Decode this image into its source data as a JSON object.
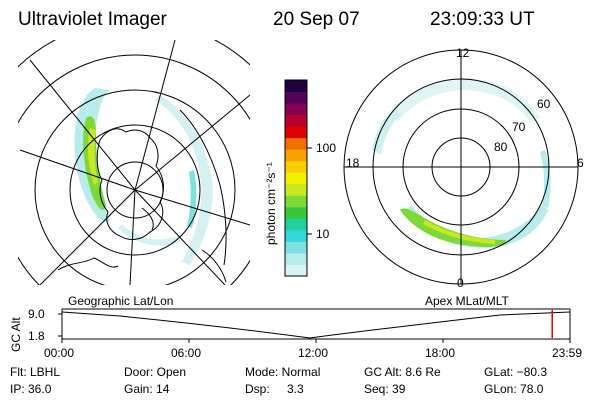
{
  "header": {
    "instrument": "Ultraviolet Imager",
    "date": "20 Sep 07",
    "time": "23:09:33 UT"
  },
  "colorbar": {
    "unit_label": "photon cm⁻²s⁻¹",
    "ticks": [
      "100",
      "10"
    ],
    "colors": [
      "#d9f2f2",
      "#b7ecec",
      "#7fe0e0",
      "#35d8d8",
      "#20d0a0",
      "#38c838",
      "#7ed838",
      "#c8e820",
      "#f0f000",
      "#f8d000",
      "#f8a000",
      "#f07000",
      "#e00000",
      "#b80030",
      "#8a0050",
      "#55005a",
      "#200040"
    ]
  },
  "maps": {
    "left_label": "Geographic Lat/Lon",
    "right_label": "Apex MLat/MLT",
    "mlt_labels": {
      "top": "12",
      "left": "18",
      "right": "6",
      "bottom": "0"
    },
    "mlat_labels": [
      "60",
      "70",
      "80"
    ]
  },
  "altitude_plot": {
    "y_label": "GC Alt",
    "y_ticks": [
      "9.0",
      "1.8"
    ],
    "x_ticks": [
      "00:00",
      "06:00",
      "12:00",
      "18:00",
      "23:59"
    ],
    "marker_time_fraction": 0.965
  },
  "status": {
    "filter": "Flt: LBHL",
    "door": "Door: Open",
    "mode": "Mode: Normal",
    "gc_alt": "GC Alt: 8.6 Re",
    "glat": "GLat: −80.3",
    "ip": "IP: 36.0",
    "gain": "Gain: 14",
    "dsp_label": "Dsp:",
    "dsp_value": "3.3",
    "seq": "Seq: 39",
    "glon": "GLon: 78.0"
  },
  "accent": {
    "marker": "#e00000"
  }
}
